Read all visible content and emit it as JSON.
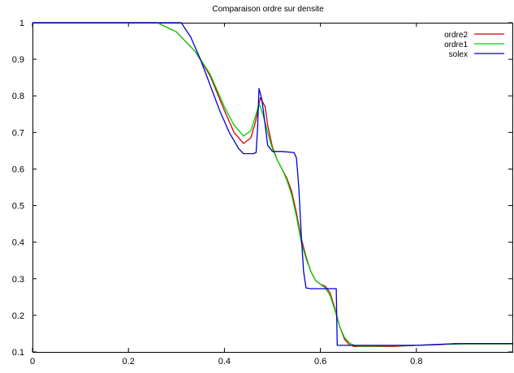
{
  "chart_data": {
    "type": "line",
    "title": "Comparaison ordre sur densite",
    "xlabel": "",
    "ylabel": "",
    "xlim": [
      0,
      1
    ],
    "ylim": [
      0.1,
      1
    ],
    "x_ticks": [
      "0",
      "0.2",
      "0.4",
      "0.6",
      "0.8"
    ],
    "y_ticks": [
      "0.1",
      "0.2",
      "0.3",
      "0.4",
      "0.5",
      "0.6",
      "0.7",
      "0.8",
      "0.9",
      "1"
    ],
    "grid": false,
    "legend_position": "top-right",
    "series": [
      {
        "name": "ordre2",
        "color": "#d40000",
        "x": [
          0.0,
          0.26,
          0.3,
          0.34,
          0.37,
          0.4,
          0.42,
          0.44,
          0.455,
          0.465,
          0.475,
          0.485,
          0.49,
          0.5,
          0.51,
          0.52,
          0.53,
          0.54,
          0.55,
          0.56,
          0.57,
          0.58,
          0.59,
          0.6,
          0.61,
          0.62,
          0.63,
          0.64,
          0.65,
          0.66,
          0.67,
          0.68,
          0.7,
          0.75,
          0.8,
          0.85,
          0.88,
          0.9,
          1.0
        ],
        "y": [
          1.0,
          1.0,
          0.975,
          0.92,
          0.855,
          0.76,
          0.7,
          0.67,
          0.685,
          0.73,
          0.795,
          0.77,
          0.72,
          0.66,
          0.625,
          0.6,
          0.575,
          0.54,
          0.48,
          0.41,
          0.36,
          0.32,
          0.295,
          0.285,
          0.28,
          0.262,
          0.22,
          0.17,
          0.135,
          0.12,
          0.115,
          0.115,
          0.115,
          0.115,
          0.118,
          0.12,
          0.123,
          0.122,
          0.122
        ]
      },
      {
        "name": "ordre1",
        "color": "#00d000",
        "x": [
          0.0,
          0.26,
          0.3,
          0.34,
          0.37,
          0.4,
          0.42,
          0.44,
          0.455,
          0.465,
          0.472,
          0.48,
          0.49,
          0.5,
          0.51,
          0.52,
          0.53,
          0.54,
          0.55,
          0.56,
          0.57,
          0.58,
          0.59,
          0.6,
          0.61,
          0.62,
          0.63,
          0.64,
          0.65,
          0.66,
          0.67,
          0.68,
          0.7,
          0.75,
          0.8,
          0.85,
          0.88,
          0.9,
          1.0
        ],
        "y": [
          1.0,
          1.0,
          0.975,
          0.92,
          0.86,
          0.77,
          0.72,
          0.69,
          0.705,
          0.745,
          0.78,
          0.75,
          0.7,
          0.655,
          0.625,
          0.6,
          0.57,
          0.53,
          0.47,
          0.4,
          0.355,
          0.32,
          0.295,
          0.285,
          0.275,
          0.255,
          0.215,
          0.17,
          0.14,
          0.125,
          0.118,
          0.116,
          0.116,
          0.117,
          0.118,
          0.121,
          0.121,
          0.122,
          0.122
        ]
      },
      {
        "name": "solex",
        "color": "#0000d0",
        "x": [
          0.0,
          0.31,
          0.33,
          0.35,
          0.37,
          0.39,
          0.41,
          0.43,
          0.44,
          0.46,
          0.466,
          0.469,
          0.472,
          0.478,
          0.485,
          0.49,
          0.5,
          0.52,
          0.545,
          0.55,
          0.555,
          0.56,
          0.565,
          0.57,
          0.58,
          0.6,
          0.62,
          0.633,
          0.635,
          0.7,
          0.8,
          0.87,
          0.9,
          1.0
        ],
        "y": [
          1.0,
          1.0,
          0.96,
          0.9,
          0.83,
          0.76,
          0.7,
          0.655,
          0.642,
          0.642,
          0.645,
          0.71,
          0.82,
          0.79,
          0.72,
          0.665,
          0.648,
          0.648,
          0.645,
          0.63,
          0.55,
          0.42,
          0.32,
          0.275,
          0.273,
          0.273,
          0.273,
          0.273,
          0.118,
          0.118,
          0.118,
          0.122,
          0.123,
          0.123
        ]
      }
    ]
  }
}
